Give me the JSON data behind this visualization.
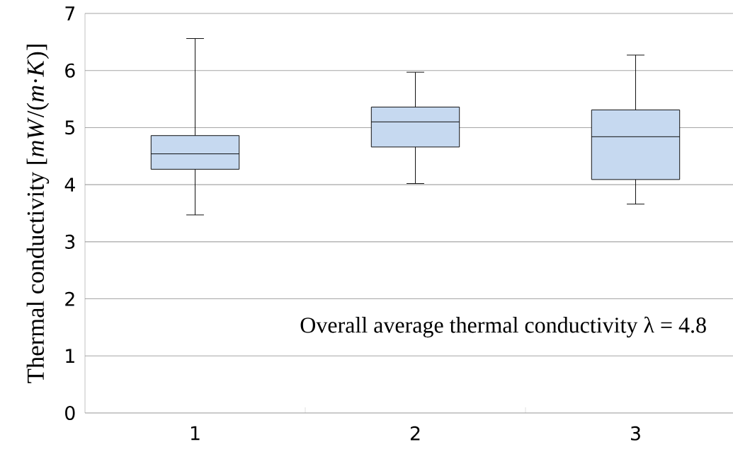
{
  "chart_data": {
    "type": "box",
    "ylabel": "Thermal conductivity [*mW*/(*m*·*K*)]",
    "categories": [
      "1",
      "2",
      "3"
    ],
    "color": "#c6d9f0",
    "boxes": [
      {
        "low": 3.47,
        "q1": 4.27,
        "median": 4.54,
        "q3": 4.86,
        "high": 6.56
      },
      {
        "low": 4.02,
        "q1": 4.66,
        "median": 5.1,
        "q3": 5.36,
        "high": 5.97
      },
      {
        "low": 3.66,
        "q1": 4.09,
        "median": 4.84,
        "q3": 5.31,
        "high": 6.27
      }
    ],
    "ylim": [
      0,
      7
    ],
    "yticks": [
      0,
      1,
      2,
      3,
      4,
      5,
      6,
      7
    ],
    "grid": "y",
    "annotations": [
      "Overall average thermal conductivity λ = 4.8"
    ]
  }
}
